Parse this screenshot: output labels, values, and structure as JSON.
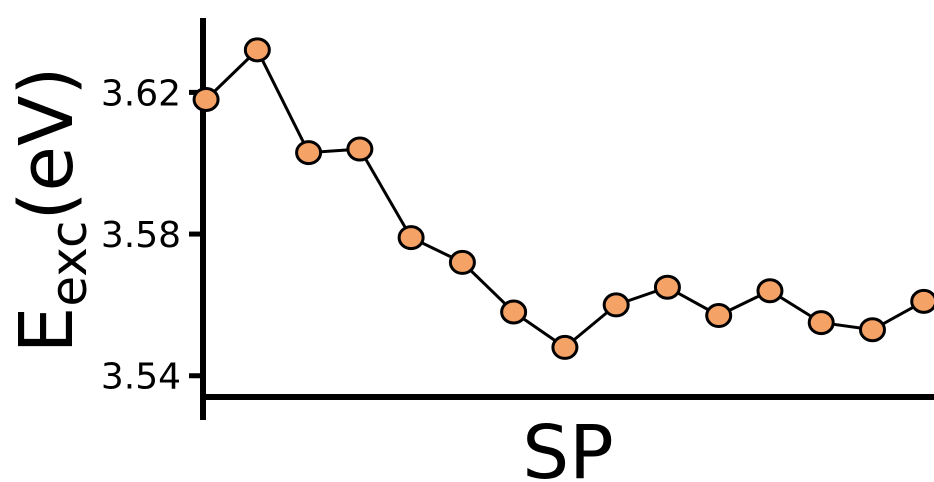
{
  "chart_data": {
    "type": "line",
    "xlabel": "SP",
    "ylabel_main": "E",
    "ylabel_sub": "exc",
    "ylabel_unit": "(eV)",
    "x": [
      1,
      2,
      3,
      4,
      5,
      6,
      7,
      8,
      9,
      10,
      11,
      12,
      13,
      14,
      15
    ],
    "values": [
      3.618,
      3.632,
      3.603,
      3.604,
      3.579,
      3.572,
      3.558,
      3.548,
      3.56,
      3.565,
      3.557,
      3.564,
      3.555,
      3.553,
      3.561
    ],
    "xlim": [
      0.94,
      15.2
    ],
    "ylim": [
      3.534,
      3.641
    ],
    "yticks": [
      3.54,
      3.58,
      3.62
    ],
    "ytick_labels": [
      "3.54",
      "3.58",
      "3.62"
    ],
    "grid": false,
    "legend": "none",
    "colors": {
      "marker_fill": "#f5a266",
      "marker_edge": "#000000",
      "line": "#000000",
      "axis": "#000000"
    }
  }
}
